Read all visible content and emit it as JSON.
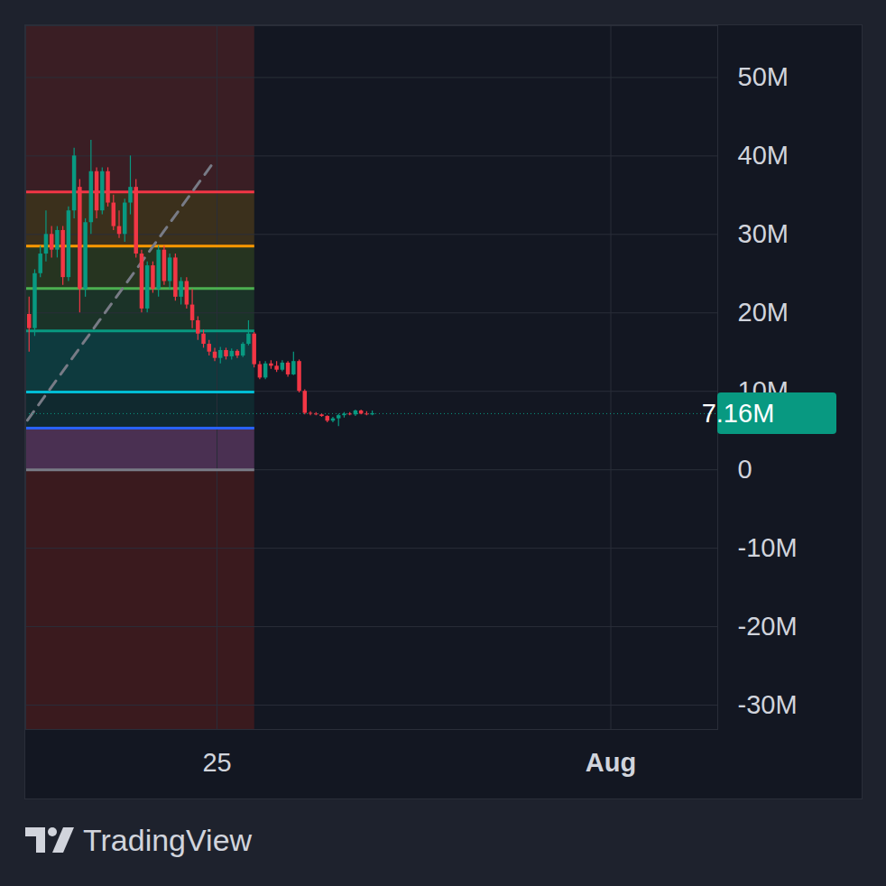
{
  "chart_data": {
    "type": "candlestick",
    "x": [
      21.66,
      21.76,
      21.86,
      21.96,
      22.06,
      22.16,
      22.26,
      22.36,
      22.46,
      22.56,
      22.66,
      22.76,
      22.86,
      22.96,
      23.06,
      23.16,
      23.26,
      23.36,
      23.46,
      23.56,
      23.66,
      23.76,
      23.86,
      23.96,
      24.06,
      24.16,
      24.26,
      24.36,
      24.46,
      24.56,
      24.66,
      24.76,
      24.86,
      24.96,
      25.06,
      25.16,
      25.26,
      25.36,
      25.46,
      25.56,
      25.66,
      25.76,
      25.86,
      25.96,
      26.06,
      26.16,
      26.26,
      26.36,
      26.46,
      26.56,
      26.66,
      26.76,
      26.86,
      26.96,
      27.06,
      27.16,
      27.26,
      27.36,
      27.46,
      27.56,
      27.66,
      27.76
    ],
    "open": [
      19.8,
      18,
      25,
      27.5,
      30,
      28,
      30.5,
      24.5,
      33,
      36,
      23,
      31.5,
      38,
      33,
      38,
      34,
      31,
      30,
      34,
      36,
      27.5,
      20.5,
      26,
      23,
      28,
      24,
      27,
      22,
      24,
      21,
      19,
      17.3,
      16,
      15,
      14.2,
      15.2,
      14.4,
      15.1,
      14.5,
      16,
      17.3,
      13.4,
      11.7,
      13.5,
      13.2,
      12.7,
      13.6,
      12.1,
      13.8,
      10,
      7.2,
      7.1,
      7.0,
      6.8,
      6.2,
      6.5,
      6.9,
      7.1,
      7.0,
      7.5,
      7.1,
      7.0
    ],
    "high": [
      22,
      25.5,
      28.5,
      33,
      31,
      31,
      31,
      33.5,
      41,
      37,
      32,
      42,
      38.5,
      38.5,
      38.5,
      35,
      33,
      34.5,
      40,
      37,
      28,
      26.5,
      26.5,
      28.5,
      28.5,
      27.5,
      27.5,
      24.5,
      24.5,
      23,
      19.5,
      17.8,
      16.5,
      15.5,
      15.6,
      15.5,
      15.4,
      15.3,
      16.2,
      19,
      17.5,
      13.8,
      13.8,
      13.9,
      13.8,
      13.9,
      13.8,
      15,
      14,
      10.2,
      7.4,
      7.3,
      7.1,
      6.9,
      6.7,
      7.1,
      7.3,
      7.3,
      7.6,
      7.6,
      7.4,
      7.5
    ],
    "low": [
      15,
      17,
      24.5,
      26.5,
      27,
      27,
      23.5,
      24,
      32,
      20,
      22,
      30,
      32,
      32.5,
      33.5,
      30.5,
      29.5,
      29,
      32.5,
      27,
      20,
      20,
      22.5,
      22,
      23.5,
      23,
      21.5,
      21,
      20.5,
      18,
      16.5,
      15.5,
      14.5,
      13.8,
      13.5,
      14,
      14,
      14.2,
      14.3,
      15.8,
      13,
      11.5,
      11.5,
      12.8,
      12.4,
      12.5,
      11.8,
      12,
      9.8,
      7,
      6.9,
      6.9,
      6.7,
      6.0,
      6.0,
      5.5,
      6.6,
      6.9,
      6.8,
      7.0,
      6.9,
      6.9
    ],
    "close": [
      18,
      25,
      27.5,
      30,
      28,
      30.5,
      24.5,
      33,
      40,
      23,
      31.5,
      38,
      33,
      38,
      34,
      31,
      30,
      34,
      36,
      27.5,
      20.5,
      26,
      23,
      28,
      24,
      27,
      22,
      24,
      21,
      19,
      17.3,
      16,
      15,
      14.2,
      15.2,
      14.4,
      15.1,
      14.5,
      16,
      17.3,
      13.4,
      11.7,
      13.5,
      13.2,
      12.7,
      13.6,
      12.1,
      13.8,
      10,
      7.2,
      7.1,
      7.0,
      6.8,
      6.2,
      6.5,
      6.9,
      7.1,
      7.0,
      7.5,
      7.1,
      7.0,
      7.16
    ],
    "colors": [
      "#f23645",
      "#089981",
      "#089981",
      "#089981",
      "#f23645",
      "#089981",
      "#f23645",
      "#089981",
      "#089981",
      "#f23645",
      "#089981",
      "#089981",
      "#f23645",
      "#089981",
      "#f23645",
      "#f23645",
      "#f23645",
      "#089981",
      "#089981",
      "#f23645",
      "#f23645",
      "#089981",
      "#f23645",
      "#089981",
      "#f23645",
      "#089981",
      "#f23645",
      "#089981",
      "#f23645",
      "#f23645",
      "#f23645",
      "#f23645",
      "#f23645",
      "#f23645",
      "#089981",
      "#f23645",
      "#089981",
      "#f23645",
      "#089981",
      "#089981",
      "#f23645",
      "#f23645",
      "#089981",
      "#f23645",
      "#f23645",
      "#089981",
      "#f23645",
      "#089981",
      "#f23645",
      "#f23645",
      "#f23645",
      "#f23645",
      "#f23645",
      "#f23645",
      "#089981",
      "#089981",
      "#089981",
      "#f23645",
      "#089981",
      "#f23645",
      "#f23645",
      "#089981"
    ],
    "xlim": [
      21.6,
      33.9
    ],
    "xticks": [
      {
        "value": 25,
        "label": "25"
      },
      {
        "value": 32,
        "label": "Aug"
      }
    ],
    "ylim": [
      -33.1,
      56.6
    ],
    "yticks": [
      {
        "value": -30,
        "label": "-30M"
      },
      {
        "value": -20,
        "label": "-20M"
      },
      {
        "value": -10,
        "label": "-10M"
      },
      0,
      {
        "value": 10,
        "label": "10M"
      },
      {
        "value": 20,
        "label": "20M"
      },
      {
        "value": 30,
        "label": "30M"
      },
      {
        "value": 40,
        "label": "40M"
      },
      {
        "value": 50,
        "label": "50M"
      }
    ],
    "grid": true,
    "last_value": 7.16,
    "last_label": "7.16M",
    "last_color": "#089981",
    "levels": [
      {
        "value": 35.4,
        "color": "#f23645"
      },
      {
        "value": 28.5,
        "color": "#ff9800"
      },
      {
        "value": 23.1,
        "color": "#4caf50"
      },
      {
        "value": 17.7,
        "color": "#089981"
      },
      {
        "value": 9.9,
        "color": "#00bcd4"
      },
      {
        "value": 5.3,
        "color": "#2962ff"
      },
      {
        "value": 0,
        "color": "#787b86"
      }
    ],
    "levels_end": 25.67,
    "zones": [
      {
        "from": 35.4,
        "to": 56.6,
        "color": "#3a1e24"
      },
      {
        "from": 28.5,
        "to": 35.4,
        "color": "#3b301c"
      },
      {
        "from": 23.1,
        "to": 28.5,
        "color": "#263420"
      },
      {
        "from": 17.7,
        "to": 23.1,
        "color": "#1b3328"
      },
      {
        "from": 9.9,
        "to": 17.7,
        "color": "#0e3a3e"
      },
      {
        "from": 5.3,
        "to": 9.9,
        "color": "#10292f"
      },
      {
        "from": 0,
        "to": 5.3,
        "color": "#4a3052"
      },
      {
        "from": -33.1,
        "to": 0,
        "color": "#3a1a1e"
      }
    ],
    "trend_line": {
      "x": [
        21.63,
        24.92
      ],
      "y": [
        6.3,
        39
      ],
      "color": "#787b86",
      "line_style": "dashed"
    },
    "source": "TradingView"
  }
}
